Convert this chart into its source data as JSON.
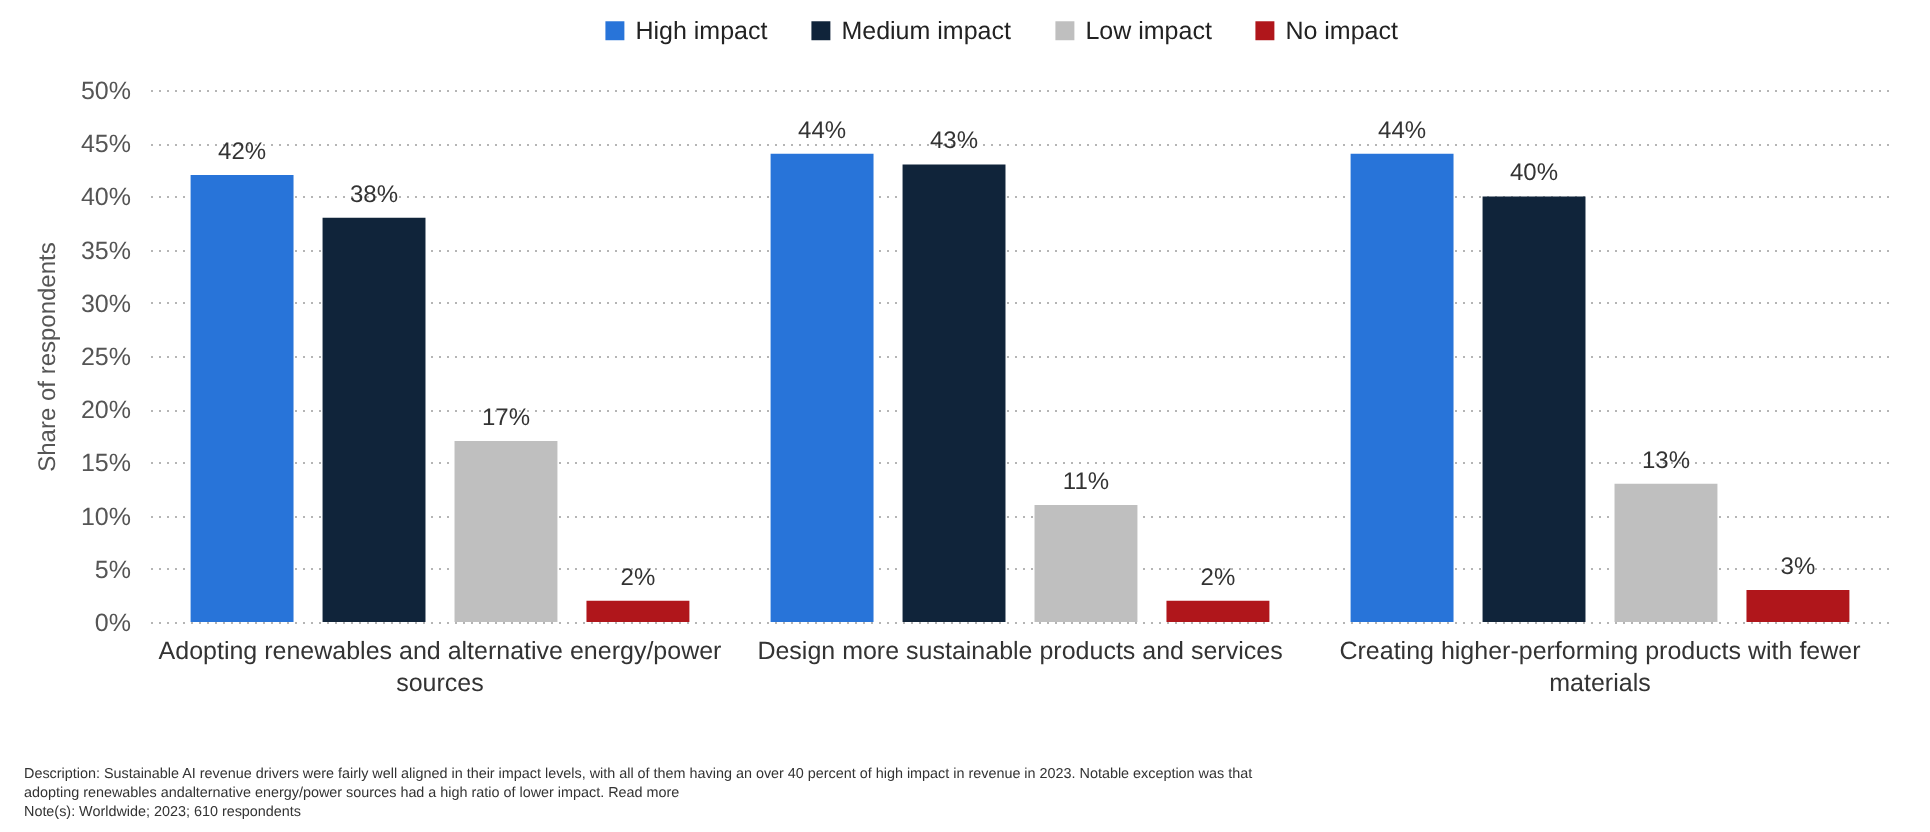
{
  "chart_data": {
    "type": "bar",
    "categories": [
      "Adopting renewables and alternative energy/power sources",
      "Design more sustainable products and services",
      "Creating higher-performing products with fewer materials"
    ],
    "series": [
      {
        "name": "High impact",
        "color": "#2874d9",
        "values": [
          42,
          44,
          44
        ],
        "value_labels": [
          "42%",
          "44%",
          "44%"
        ]
      },
      {
        "name": "Medium impact",
        "color": "#10243a",
        "values": [
          38,
          43,
          40
        ],
        "value_labels": [
          "38%",
          "43%",
          "40%"
        ]
      },
      {
        "name": "Low impact",
        "color": "#bfbfbf",
        "values": [
          17,
          11,
          13
        ],
        "value_labels": [
          "17%",
          "11%",
          "13%"
        ]
      },
      {
        "name": "No impact",
        "color": "#b0161b",
        "values": [
          2,
          2,
          3
        ],
        "value_labels": [
          "2%",
          "2%",
          "3%"
        ]
      }
    ],
    "ylabel": "Share of respondents",
    "ylim": [
      0,
      50
    ],
    "yticks": [
      {
        "value": 0,
        "label": "0%"
      },
      {
        "value": 5,
        "label": "5%"
      },
      {
        "value": 10,
        "label": "10%"
      },
      {
        "value": 15,
        "label": "15%"
      },
      {
        "value": 20,
        "label": "20%"
      },
      {
        "value": 25,
        "label": "25%"
      },
      {
        "value": 30,
        "label": "30%"
      },
      {
        "value": 35,
        "label": "35%"
      },
      {
        "value": 40,
        "label": "40%"
      },
      {
        "value": 45,
        "label": "45%"
      },
      {
        "value": 50,
        "label": "50%"
      }
    ],
    "grid": "y",
    "legend": "top",
    "annotations": [
      "Description: Sustainable AI revenue drivers were fairly well aligned in their impact levels, with all of them having an over 40 percent of high impact in revenue in 2023. Notable exception was that adopting renewables andalternative energy/power sources had a high ratio of lower impact. Read more",
      "Note(s): Worldwide; 2023; 610 respondents"
    ]
  }
}
